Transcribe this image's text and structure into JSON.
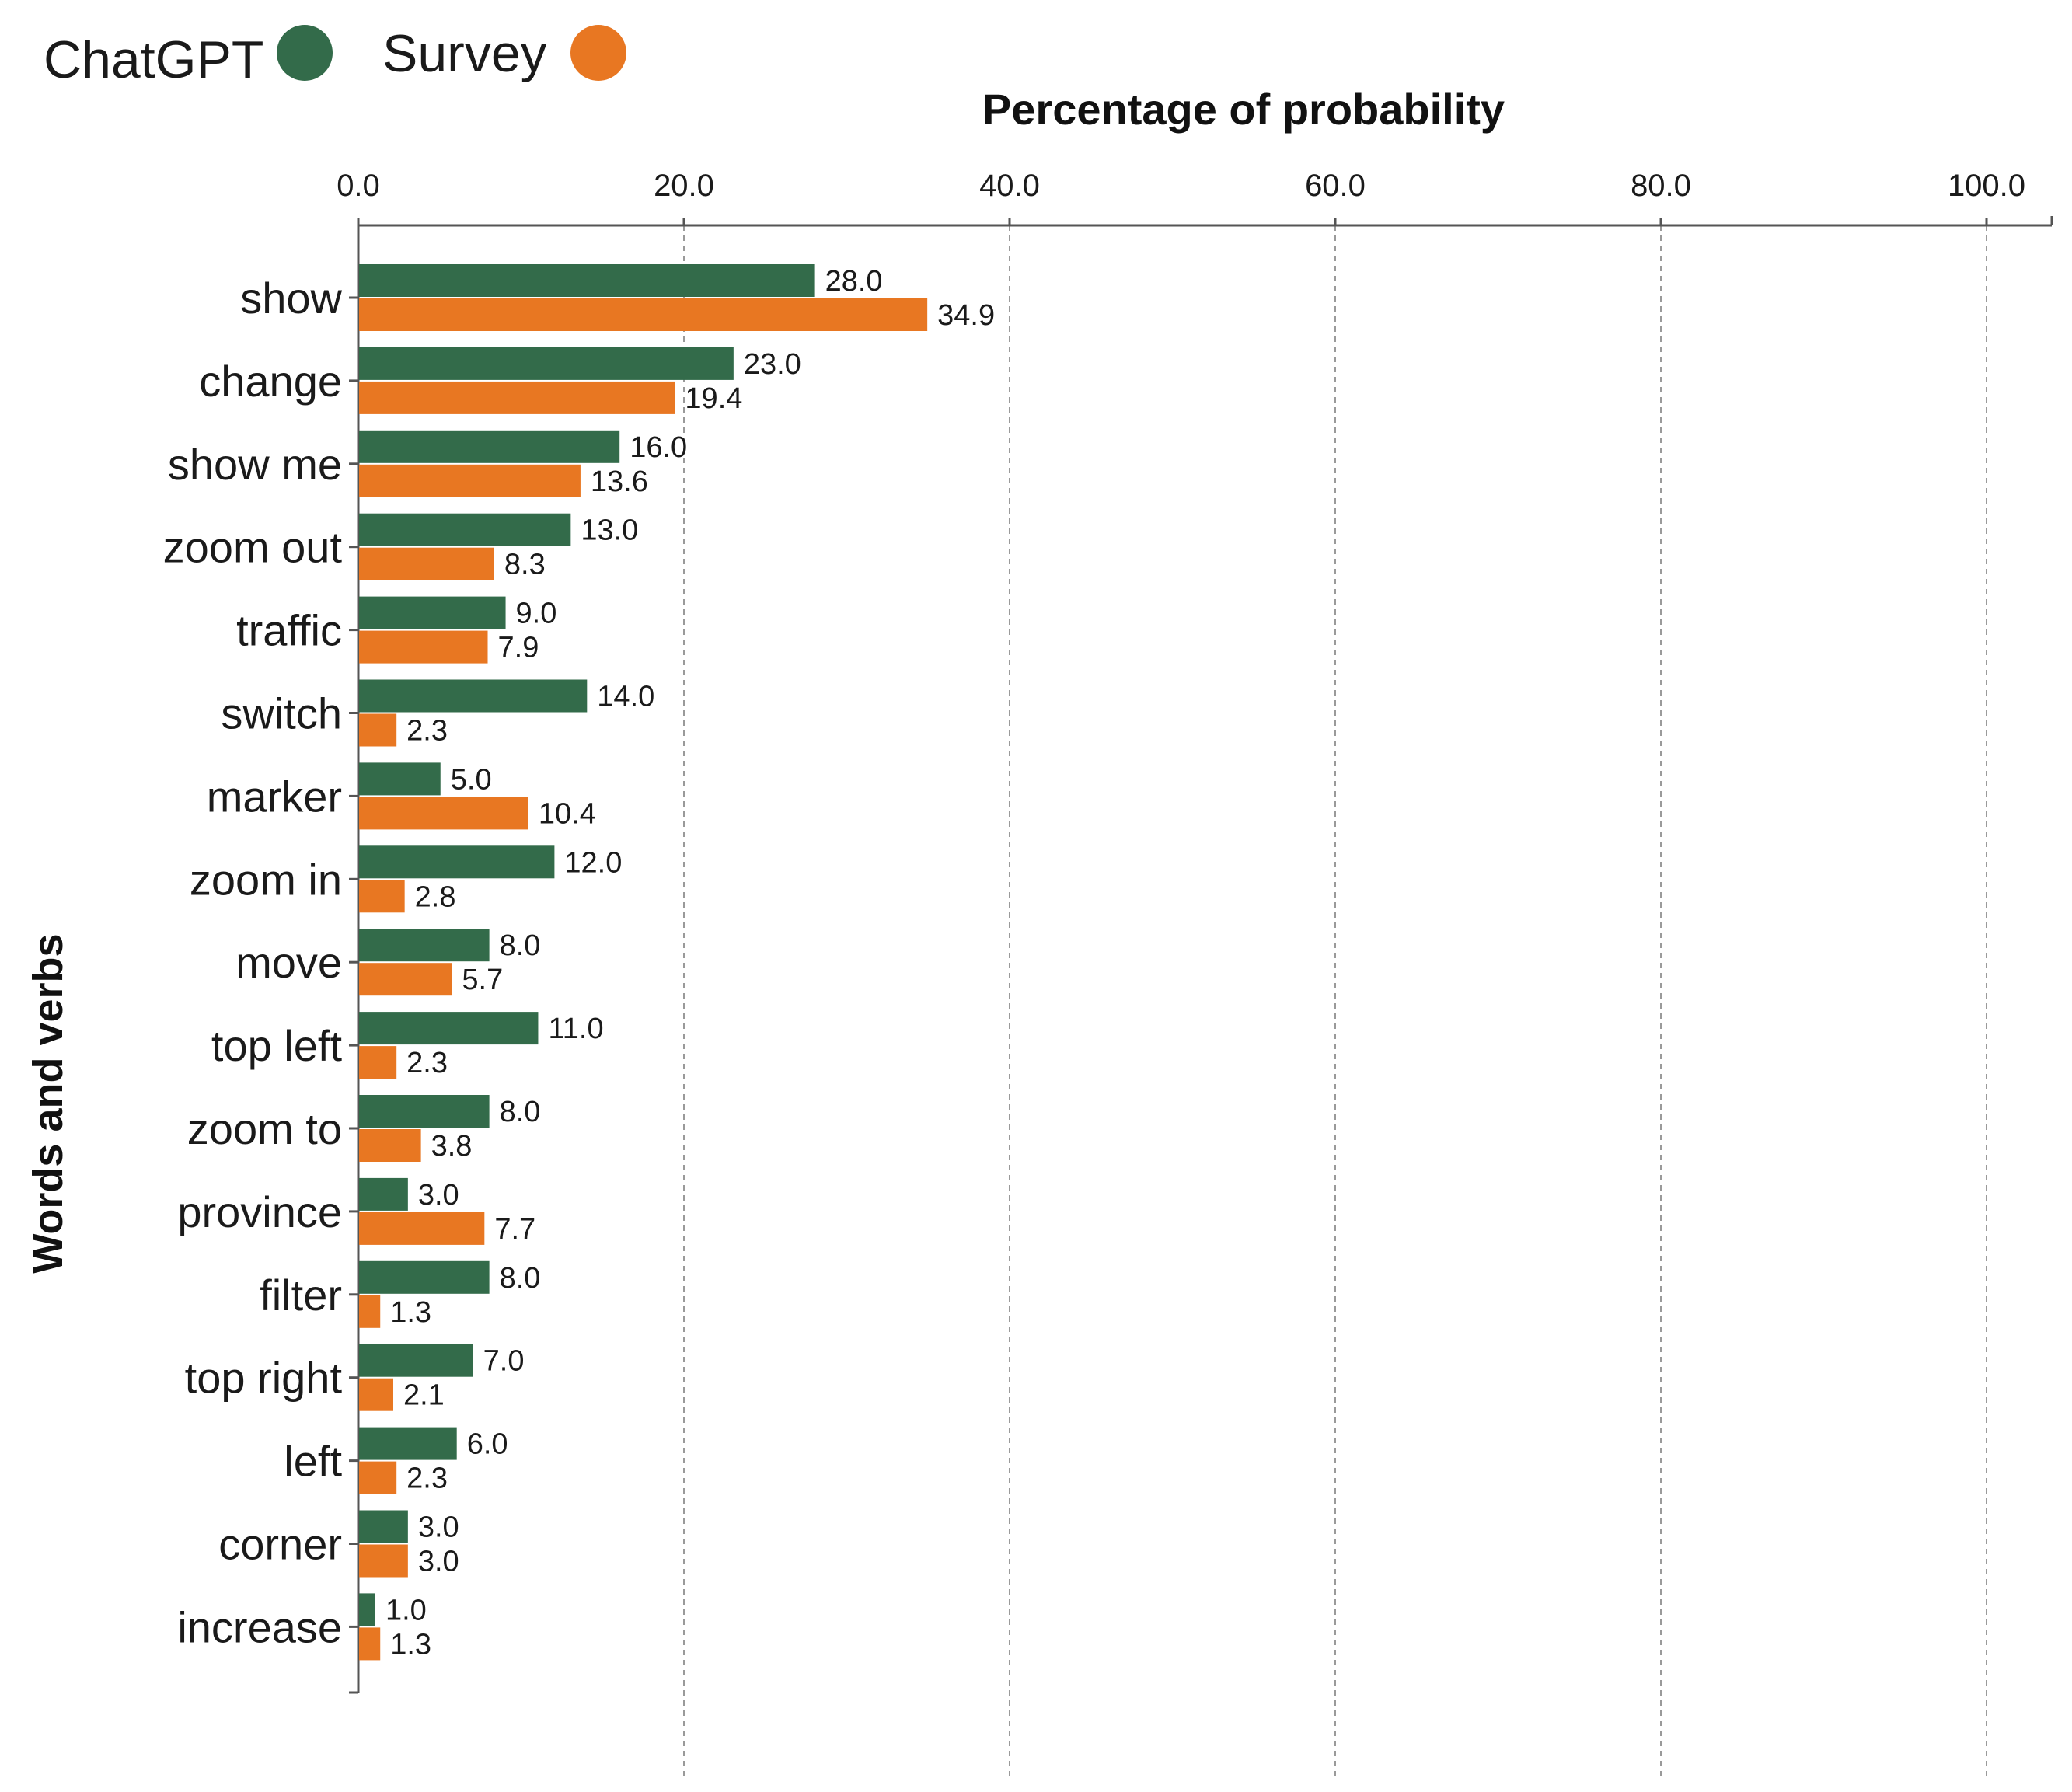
{
  "chart_data": {
    "type": "bar",
    "orientation": "horizontal",
    "title": "",
    "xlabel": "Percentage of probability",
    "ylabel": "Words and verbs",
    "xlim": [
      0,
      100
    ],
    "x_ticks": [
      "0.0",
      "20.0",
      "40.0",
      "60.0",
      "80.0",
      "100.0"
    ],
    "x_axis_position": "top",
    "grid": "vertical dashed",
    "legend_position": "top-left",
    "categories": [
      "show",
      "change",
      "show me",
      "zoom out",
      "traffic",
      "switch",
      "marker",
      "zoom in",
      "move",
      "top left",
      "zoom to",
      "province",
      "filter",
      "top right",
      "left",
      "corner",
      "increase"
    ],
    "series": [
      {
        "name": "ChatGPT",
        "color": "#336b4a",
        "values": [
          28.0,
          23.0,
          16.0,
          13.0,
          9.0,
          14.0,
          5.0,
          12.0,
          8.0,
          11.0,
          8.0,
          3.0,
          8.0,
          7.0,
          6.0,
          3.0,
          1.0
        ],
        "labels": [
          "28.0",
          "23.0",
          "16.0",
          "13.0",
          "9.0",
          "14.0",
          "5.0",
          "12.0",
          "8.0",
          "11.0",
          "8.0",
          "3.0",
          "8.0",
          "7.0",
          "6.0",
          "3.0",
          "1.0"
        ]
      },
      {
        "name": "Survey",
        "color": "#e87722",
        "values": [
          34.9,
          19.4,
          13.6,
          8.3,
          7.9,
          2.3,
          10.4,
          2.8,
          5.7,
          2.3,
          3.8,
          7.7,
          1.3,
          2.1,
          2.3,
          3.0,
          1.3
        ],
        "labels": [
          "34.9",
          "19.4",
          "13.6",
          "8.3",
          "7.9",
          "2.3",
          "10.4",
          "2.8",
          "5.7",
          "2.3",
          "3.8",
          "7.7",
          "1.3",
          "2.1",
          "2.3",
          "3.0",
          "1.3"
        ]
      }
    ]
  }
}
